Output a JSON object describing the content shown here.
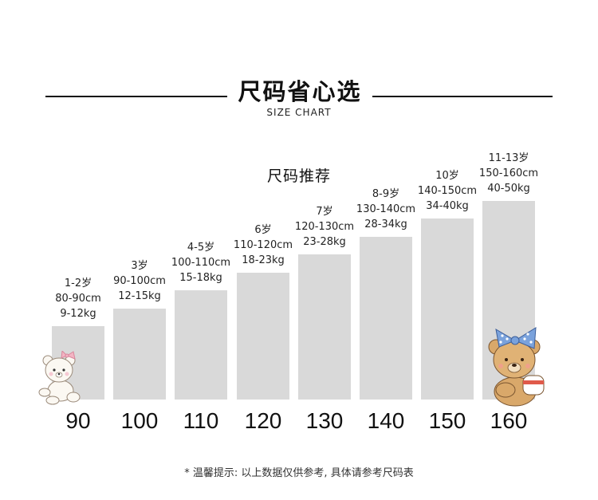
{
  "header": {
    "title": "尺码省心选",
    "subtitle": "SIZE CHART"
  },
  "section_heading": "尺码推荐",
  "chart_data": {
    "type": "bar",
    "categories": [
      "90",
      "100",
      "110",
      "120",
      "130",
      "140",
      "150",
      "160"
    ],
    "values": [
      90,
      100,
      110,
      120,
      130,
      140,
      150,
      160
    ],
    "ylim": [
      60,
      160
    ],
    "labels": [
      {
        "age": "1-2岁",
        "height": "80-90cm",
        "weight": "9-12kg"
      },
      {
        "age": "3岁",
        "height": "90-100cm",
        "weight": "12-15kg"
      },
      {
        "age": "4-5岁",
        "height": "100-110cm",
        "weight": "15-18kg"
      },
      {
        "age": "6岁",
        "height": "110-120cm",
        "weight": "18-23kg"
      },
      {
        "age": "7岁",
        "height": "120-130cm",
        "weight": "23-28kg"
      },
      {
        "age": "8-9岁",
        "height": "130-140cm",
        "weight": "28-34kg"
      },
      {
        "age": "10岁",
        "height": "140-150cm",
        "weight": "34-40kg"
      },
      {
        "age": "11-13岁",
        "height": "150-160cm",
        "weight": "40-50kg"
      }
    ],
    "bar_color": "#d9d9d9",
    "grid": false
  },
  "footnote": "* 温馨提示:  以上数据仅供参考, 具体请参考尺码表",
  "decorations": {
    "left_icon": "white-teddy-bear-with-pink-bow-icon",
    "right_icon": "brown-teddy-bear-with-blue-polka-dot-bow-icon"
  }
}
